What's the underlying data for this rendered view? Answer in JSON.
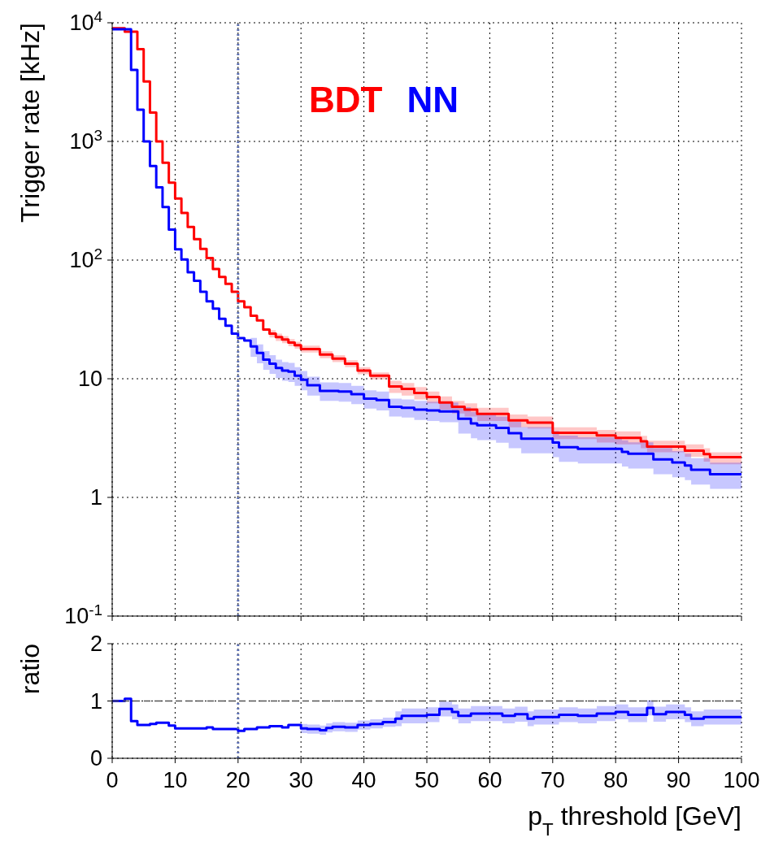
{
  "chart_data": [
    {
      "type": "step",
      "ylabel": "Trigger rate [kHz]",
      "xlim": [
        0,
        100
      ],
      "xticks": [
        0,
        10,
        20,
        30,
        40,
        50,
        60,
        70,
        80,
        90,
        100
      ],
      "ylim": [
        0.1,
        10000
      ],
      "yticks": [
        {
          "value": 0.1,
          "label": "10$^{-1}$"
        },
        1,
        10,
        {
          "value": 100,
          "label": "10$^{2}$"
        },
        {
          "value": 1000,
          "label": "10$^{3}$"
        },
        {
          "value": 10000,
          "label": "10$^{4}$"
        }
      ],
      "log": "y",
      "grid": true,
      "legend": "top",
      "tick_labels": "y",
      "series": [
        {
          "name": "BDT",
          "color": "#ff0000",
          "x": [
            0,
            2,
            4,
            5,
            6,
            7,
            8,
            9,
            10,
            11,
            12,
            13,
            14,
            15,
            16,
            17,
            18,
            19,
            20,
            21,
            22,
            23,
            24,
            25,
            26,
            27,
            28,
            29,
            30,
            33,
            35,
            37,
            39,
            41,
            44,
            46,
            48,
            50,
            52,
            54,
            56,
            58,
            63,
            66,
            70,
            77,
            80,
            84,
            85,
            91,
            94,
            95,
            100
          ],
          "values": [
            9000,
            8400,
            6000,
            3200,
            1750,
            1000,
            660,
            450,
            330,
            250,
            190,
            150,
            124,
            104,
            84,
            72,
            63,
            54,
            45,
            40,
            34,
            31,
            26,
            24,
            22.4,
            21.4,
            20.2,
            19.2,
            17.8,
            16,
            14.8,
            13.4,
            11.7,
            10.6,
            8.6,
            8.2,
            7.6,
            7,
            6.3,
            5.8,
            5.5,
            5.05,
            4.45,
            4.27,
            3.5,
            3.33,
            3.18,
            2.97,
            2.68,
            2.48,
            2.32,
            2.18,
            2.18
          ],
          "lower": [
            null,
            null,
            null,
            null,
            null,
            null,
            null,
            null,
            null,
            null,
            null,
            null,
            null,
            null,
            null,
            null,
            null,
            null,
            null,
            null,
            null,
            null,
            null,
            22.3,
            20.8,
            19.9,
            18.8,
            17.9,
            16.6,
            14.9,
            13.8,
            12.5,
            10.9,
            9.9,
            7.6,
            7.2,
            6.7,
            6.2,
            5.5,
            5.1,
            4.8,
            4.4,
            3.9,
            3.8,
            3.1,
            2.9,
            2.8,
            2.6,
            2.4,
            2.2,
            2,
            1.9,
            1.9
          ],
          "upper": [
            null,
            null,
            null,
            null,
            null,
            null,
            null,
            null,
            null,
            null,
            null,
            null,
            null,
            null,
            null,
            null,
            null,
            null,
            null,
            null,
            null,
            null,
            null,
            25.7,
            24,
            22.9,
            21.6,
            20.5,
            19,
            17.1,
            15.8,
            14.3,
            12.5,
            11.3,
            9.6,
            9.2,
            8.5,
            7.8,
            7.1,
            6.5,
            6.2,
            5.7,
            5,
            4.8,
            3.9,
            3.7,
            3.6,
            3.3,
            3,
            2.8,
            2.6,
            2.4,
            2.4
          ]
        },
        {
          "name": "NN",
          "color": "#0000ff",
          "x": [
            0,
            3,
            4,
            5,
            6,
            7,
            8,
            9,
            10,
            11,
            12,
            13,
            14,
            15,
            16,
            17,
            18,
            19,
            20,
            21,
            22,
            23,
            24,
            25,
            26,
            27,
            28,
            29,
            30,
            31,
            33,
            36,
            38,
            40,
            42,
            44,
            46,
            48,
            50,
            52,
            55,
            57,
            58,
            61,
            63,
            65,
            70,
            71,
            74,
            81,
            82,
            86,
            89,
            91,
            92,
            95,
            100
          ],
          "values": [
            8800,
            4000,
            1850,
            1000,
            620,
            410,
            280,
            181,
            123,
            101,
            79,
            67,
            54,
            45,
            39,
            32,
            28,
            24,
            22,
            21,
            18.7,
            16.5,
            14.5,
            13.4,
            12.3,
            11.7,
            11.5,
            10.6,
            9.8,
            8.8,
            7.9,
            7.8,
            7.4,
            6.8,
            6.6,
            5.8,
            5.7,
            5.5,
            5.4,
            5.3,
            4.6,
            4.2,
            4.05,
            3.85,
            3.47,
            3.13,
            2.9,
            2.65,
            2.57,
            2.42,
            2.33,
            2.09,
            1.97,
            1.86,
            1.71,
            1.57,
            1.57
          ],
          "lower": [
            null,
            null,
            null,
            null,
            null,
            null,
            null,
            null,
            null,
            null,
            null,
            null,
            null,
            null,
            null,
            null,
            null,
            null,
            null,
            null,
            15.3,
            13.5,
            11.9,
            11,
            10.1,
            9.6,
            9.4,
            8.7,
            8,
            7.2,
            6.5,
            6.4,
            6.1,
            5.6,
            5.4,
            4.8,
            4.7,
            4.5,
            4.4,
            4.3,
            3.45,
            3.15,
            3.04,
            2.89,
            2.6,
            2.35,
            2.18,
            1.99,
            1.93,
            1.82,
            1.75,
            1.57,
            1.48,
            1.4,
            1.28,
            1.18,
            1.18
          ],
          "upper": [
            null,
            null,
            null,
            null,
            null,
            null,
            null,
            null,
            null,
            null,
            null,
            null,
            null,
            null,
            null,
            null,
            null,
            null,
            null,
            null,
            22.1,
            19.5,
            17.1,
            15.8,
            14.5,
            13.8,
            13.6,
            12.5,
            11.6,
            10.4,
            9.3,
            9.2,
            8.7,
            8,
            7.8,
            6.8,
            6.7,
            6.5,
            6.4,
            6.3,
            5.75,
            5.25,
            5.06,
            4.81,
            4.34,
            3.91,
            3.63,
            3.31,
            3.21,
            3.03,
            2.91,
            2.61,
            2.46,
            2.33,
            2.14,
            1.96,
            1.96
          ]
        }
      ],
      "ref_lines": [
        {
          "axis": "x",
          "value": 20,
          "color": "#5b6fb5",
          "line_style": "dotted"
        }
      ]
    },
    {
      "type": "step",
      "xlabel": "p$_{T}$ threshold [GeV]",
      "ylabel": "ratio",
      "xlim": [
        0,
        100
      ],
      "xticks": [
        0,
        10,
        20,
        30,
        40,
        50,
        60,
        70,
        80,
        90,
        100
      ],
      "ylim": [
        0,
        2
      ],
      "yticks": [
        0,
        1,
        2
      ],
      "grid": true,
      "series": [
        {
          "color": "#0000ff",
          "x": [
            0,
            2,
            3,
            4,
            6,
            7,
            9,
            10,
            15,
            16,
            20,
            21,
            23,
            25,
            27,
            28,
            30,
            31,
            33,
            34,
            35,
            37,
            39,
            41,
            43,
            45,
            46,
            50,
            52,
            54,
            55,
            57,
            62,
            64,
            66,
            67,
            71,
            74,
            77,
            80,
            82,
            85,
            86,
            88,
            91,
            92,
            94,
            100
          ],
          "values": [
            1.0,
            1.04,
            0.65,
            0.58,
            0.6,
            0.62,
            0.57,
            0.52,
            0.54,
            0.51,
            0.48,
            0.51,
            0.54,
            0.56,
            0.54,
            0.58,
            0.52,
            0.51,
            0.49,
            0.53,
            0.55,
            0.54,
            0.58,
            0.6,
            0.63,
            0.69,
            0.74,
            0.76,
            0.86,
            0.81,
            0.74,
            0.78,
            0.74,
            0.77,
            0.69,
            0.72,
            0.76,
            0.74,
            0.78,
            0.81,
            0.76,
            0.88,
            0.77,
            0.81,
            0.76,
            0.69,
            0.72,
            0.72
          ],
          "lower": [
            null,
            null,
            null,
            null,
            null,
            null,
            null,
            null,
            null,
            null,
            null,
            null,
            null,
            null,
            null,
            null,
            0.44,
            0.43,
            0.41,
            0.45,
            0.47,
            0.46,
            0.5,
            0.52,
            0.55,
            0.56,
            0.61,
            0.63,
            0.73,
            0.68,
            0.61,
            0.65,
            0.61,
            0.64,
            0.56,
            0.59,
            0.63,
            0.61,
            0.65,
            0.68,
            0.63,
            0.75,
            0.64,
            0.68,
            0.63,
            0.56,
            0.59,
            0.59
          ],
          "upper": [
            null,
            null,
            null,
            null,
            null,
            null,
            null,
            null,
            null,
            null,
            null,
            null,
            null,
            null,
            null,
            null,
            0.6,
            0.59,
            0.57,
            0.61,
            0.63,
            0.62,
            0.66,
            0.68,
            0.71,
            0.82,
            0.87,
            0.89,
            0.99,
            0.94,
            0.87,
            0.91,
            0.87,
            0.9,
            0.82,
            0.85,
            0.89,
            0.87,
            0.91,
            0.94,
            0.89,
            1.01,
            0.9,
            0.94,
            0.89,
            0.82,
            0.85,
            0.85
          ]
        }
      ],
      "ref_lines": [
        {
          "axis": "y",
          "value": 1,
          "color": "#555555",
          "line_style": "dashed"
        },
        {
          "axis": "x",
          "value": 20,
          "color": "#5b6fb5",
          "line_style": "dotted"
        }
      ]
    }
  ]
}
